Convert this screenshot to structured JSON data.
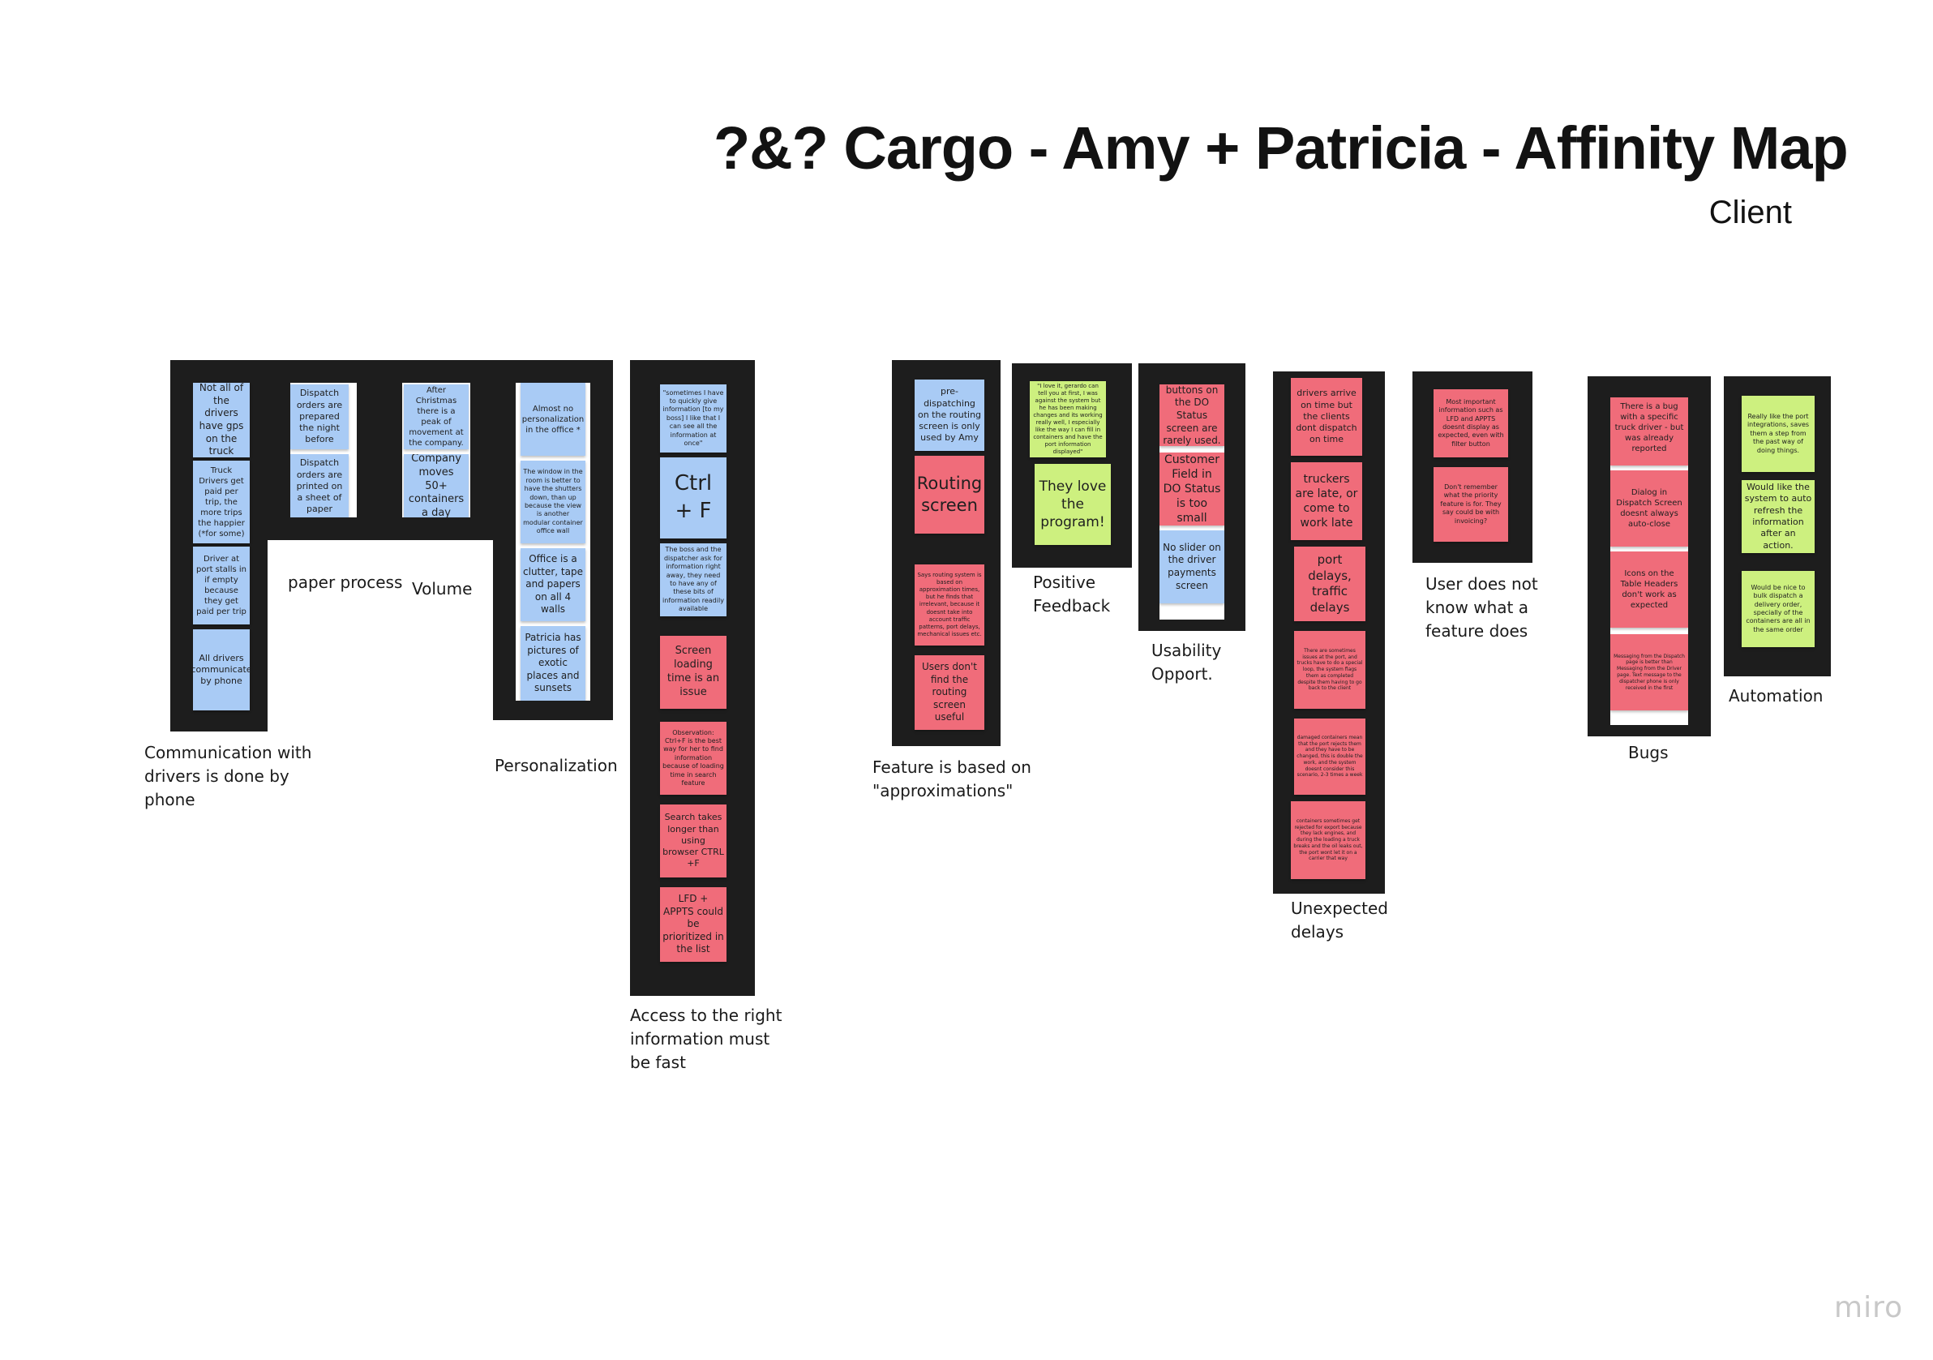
{
  "board": {
    "title": "?&? Cargo - Amy + Patricia - Affinity Map",
    "subtitle": "Client"
  },
  "colors": {
    "blue_note": "#a9cbf5",
    "pink_note": "#f06c7a",
    "green_note": "#cdf07f",
    "frame": "#1d1d1d"
  },
  "clusters": [
    {
      "label": "Communication with drivers is done by phone",
      "notes": [
        {
          "text": "Not all of the drivers have gps on the truck",
          "color": "blue"
        },
        {
          "text": "Truck Drivers get paid per trip, the more trips the happier (*for some)",
          "color": "blue"
        },
        {
          "text": "Driver at port stalls in if empty because they get paid per trip",
          "color": "blue"
        },
        {
          "text": "All drivers communicate by phone",
          "color": "blue"
        }
      ]
    },
    {
      "label": "paper process",
      "notes": [
        {
          "text": "Dispatch orders are prepared the night before",
          "color": "blue"
        },
        {
          "text": "Dispatch orders are printed on a sheet of paper",
          "color": "blue"
        }
      ]
    },
    {
      "label": "Volume",
      "notes": [
        {
          "text": "After Christmas there is a peak of movement at the company.",
          "color": "blue"
        },
        {
          "text": "Company moves 50+ containers a day",
          "color": "blue"
        }
      ]
    },
    {
      "label": "Personalization",
      "notes": [
        {
          "text": "Almost no personalization in the office *",
          "color": "blue"
        },
        {
          "text": "The window in the room is better to have the shutters down, than up because the view is another modular container office wall",
          "color": "blue"
        },
        {
          "text": "Office is a clutter, tape and papers on all 4 walls",
          "color": "blue"
        },
        {
          "text": "Patricia has pictures of exotic places and sunsets",
          "color": "blue"
        }
      ]
    },
    {
      "label": "Access to the right information must be fast",
      "notes": [
        {
          "text": "\"sometimes I have to quickly give information [to my boss] I like that I can see all the information at once\"",
          "color": "blue"
        },
        {
          "text": "Ctrl + F",
          "color": "blue"
        },
        {
          "text": "The boss and the dispatcher ask for information right away, they need to have any of these bits of information readily available",
          "color": "blue"
        },
        {
          "text": "Screen loading time is an issue",
          "color": "pink"
        },
        {
          "text": "Observation: Ctrl+F is the best way for her to find information because of loading time in search feature",
          "color": "pink"
        },
        {
          "text": "Search takes longer than using browser CTRL +F",
          "color": "pink"
        },
        {
          "text": "LFD + APPTS could be prioritized in the list",
          "color": "pink"
        }
      ]
    },
    {
      "label": "Feature is based on \"approximations\"",
      "notes": [
        {
          "text": "pre-dispatching on the routing screen is only used by Amy",
          "color": "blue"
        },
        {
          "text": "Routing screen",
          "color": "pink"
        },
        {
          "text": "Says routing system is based on approximation times, but he finds that irrelevant, because it doesnt take into account traffic patterns, port delays, mechanical issues etc.",
          "color": "pink"
        },
        {
          "text": "Users don't find the routing screen useful",
          "color": "pink"
        }
      ]
    },
    {
      "label": "Positive Feedback",
      "notes": [
        {
          "text": "\"I love it, gerardo can tell you at first, I was against the system but he has been making changes and its working really well, I especially like the way I can fill in containers and have the port information displayed\"",
          "color": "green"
        },
        {
          "text": "They love the program!",
          "color": "green"
        }
      ]
    },
    {
      "label": "Usability Opport.",
      "notes": [
        {
          "text": "Many of the buttons on the DO Status screen are rarely used.",
          "color": "pink"
        },
        {
          "text": "Customer Field in DO Status is too small",
          "color": "pink"
        },
        {
          "text": "No slider on the driver payments screen",
          "color": "blue"
        }
      ]
    },
    {
      "label": "Unexpected delays",
      "notes": [
        {
          "text": "drivers arrive on time but the clients dont dispatch on time",
          "color": "pink"
        },
        {
          "text": "truckers are late, or come to work late",
          "color": "pink"
        },
        {
          "text": "port delays, traffic delays",
          "color": "pink"
        },
        {
          "text": "There are sometimes issues at the port, and trucks have to do a special loop, the system flags them as completed despite them having to go back to the client",
          "color": "pink"
        },
        {
          "text": "damaged containers mean that the port rejects them and they have to be changed, this is double the work, and the system doesnt consider this scenario, 2-3 times a week",
          "color": "pink"
        },
        {
          "text": "containers sometimes get rejected for export because they lack engines, and during the loading a truck breaks and the oil leaks out, the port wont let it on a carrier that way",
          "color": "pink"
        }
      ]
    },
    {
      "label": "User does not know what a feature does",
      "notes": [
        {
          "text": "Most important information such as LFD and APPTS doesnt display as expected, even with filter button",
          "color": "pink"
        },
        {
          "text": "Don't remember what the priority feature is for. They say could be with invoicing?",
          "color": "pink"
        }
      ]
    },
    {
      "label": "Bugs",
      "notes": [
        {
          "text": "There is a bug with a specific truck driver - but was already reported",
          "color": "pink"
        },
        {
          "text": "Dialog in Dispatch Screen doesnt always auto-close",
          "color": "pink"
        },
        {
          "text": "Icons on the Table Headers don't work as expected",
          "color": "pink"
        },
        {
          "text": "Messaging from the Dispatch page is better than Messaging from the Driver page. Text message to the dispatcher phone is only received in the first",
          "color": "pink"
        }
      ]
    },
    {
      "label": "Automation",
      "notes": [
        {
          "text": "Really like the port integrations, saves them a step from the past way of doing things.",
          "color": "green"
        },
        {
          "text": "Would like the system to auto refresh the information after an action.",
          "color": "green"
        },
        {
          "text": "Would be nice to bulk dispatch a delivery order, specially of the containers are all in the same order",
          "color": "green"
        }
      ]
    }
  ],
  "miro_logo": "miro"
}
